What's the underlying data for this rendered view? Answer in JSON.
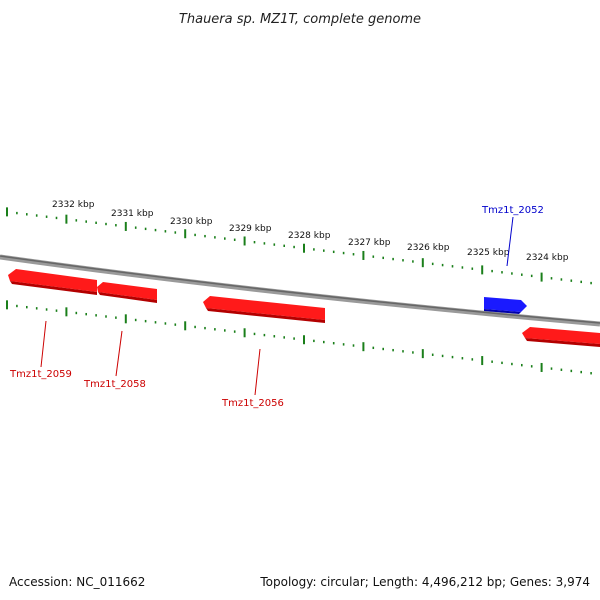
{
  "title": "Thauera sp. MZ1T, complete genome",
  "footer": {
    "accession": "Accession: NC_011662",
    "summary": "Topology: circular; Length: 4,496,212 bp; Genes: 3,974"
  },
  "colors": {
    "forward_gene": "#ff0000",
    "reverse_gene": "#0000ee",
    "ticks": "#1a7f1a",
    "backbone": "#777777"
  },
  "scale": {
    "unit": "kbp",
    "labels": [
      "2332 kbp",
      "2331 kbp",
      "2330 kbp",
      "2329 kbp",
      "2328 kbp",
      "2327 kbp",
      "2326 kbp",
      "2325 kbp",
      "2324 kbp"
    ]
  },
  "genes": [
    {
      "id": "Tmz1t_2059",
      "strand": "-",
      "labeled": true
    },
    {
      "id": "Tmz1t_2058",
      "strand": "-",
      "labeled": true
    },
    {
      "id": "Tmz1t_2056",
      "strand": "-",
      "labeled": true
    },
    {
      "id": "Tmz1t_2052",
      "strand": "+",
      "labeled": true
    },
    {
      "id": "",
      "strand": "-",
      "labeled": false
    }
  ]
}
